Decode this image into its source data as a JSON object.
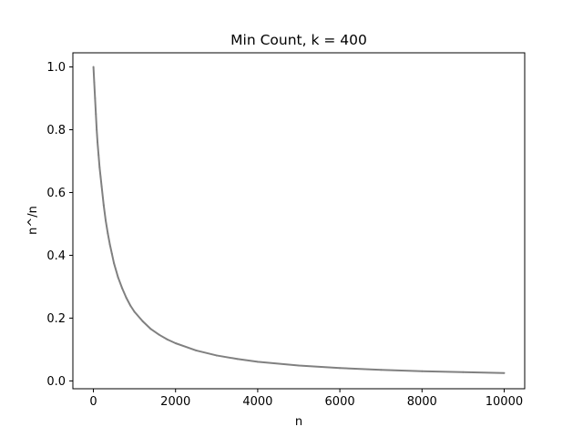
{
  "chart_data": {
    "type": "line",
    "title": "Min Count, k = 400",
    "xlabel": "n",
    "ylabel": "n^/n",
    "xlim": [
      -500,
      10500
    ],
    "ylim": [
      -0.025,
      1.045
    ],
    "xticks": [
      0,
      2000,
      4000,
      6000,
      8000,
      10000
    ],
    "yticks": [
      0.0,
      0.2,
      0.4,
      0.6,
      0.8,
      1.0
    ],
    "grid": false,
    "line_color": "#808080",
    "series": [
      {
        "x": [
          1,
          20,
          40,
          60,
          80,
          100,
          125,
          150,
          175,
          200,
          250,
          300,
          350,
          400,
          450,
          500,
          600,
          700,
          800,
          900,
          1000,
          1200,
          1400,
          1600,
          1800,
          2000,
          2500,
          3000,
          3500,
          4000,
          5000,
          6000,
          7000,
          8000,
          9000,
          10000
        ],
        "y": [
          1.0,
          0.95,
          0.9,
          0.85,
          0.8,
          0.76,
          0.72,
          0.68,
          0.65,
          0.62,
          0.56,
          0.51,
          0.47,
          0.435,
          0.405,
          0.375,
          0.33,
          0.295,
          0.265,
          0.24,
          0.22,
          0.19,
          0.165,
          0.147,
          0.132,
          0.12,
          0.097,
          0.081,
          0.07,
          0.061,
          0.049,
          0.041,
          0.035,
          0.031,
          0.028,
          0.025
        ]
      }
    ]
  }
}
